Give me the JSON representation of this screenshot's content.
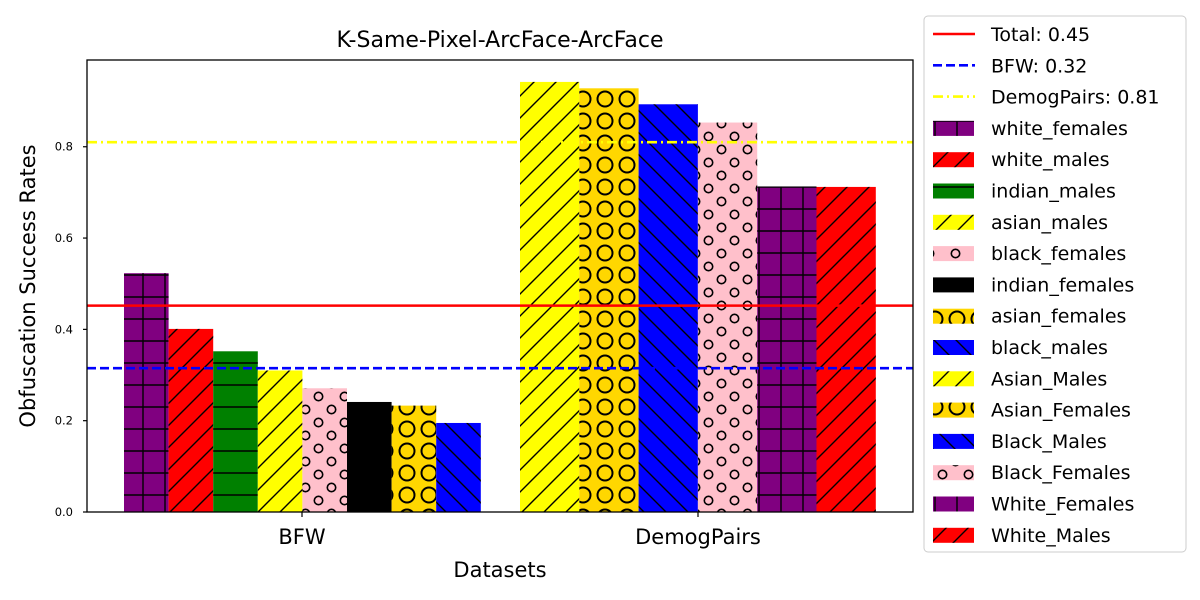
{
  "chart_data": {
    "type": "bar",
    "title": "K-Same-Pixel-ArcFace-ArcFace",
    "xlabel": "Datasets",
    "ylabel": "Obfuscation Success Rates",
    "ylim": [
      0,
      0.94
    ],
    "yticks": [
      "0.0",
      "0.2",
      "0.4",
      "0.6",
      "0.8"
    ],
    "grid": false,
    "legend_position": "outside-right",
    "groups": [
      {
        "category": "BFW",
        "bars": [
          {
            "name": "white_females",
            "value": 0.523,
            "color": "#800080",
            "hatch": "grid"
          },
          {
            "name": "white_males",
            "value": 0.401,
            "color": "#ff0000",
            "hatch": "slash"
          },
          {
            "name": "indian_males",
            "value": 0.352,
            "color": "#008000",
            "hatch": "hline"
          },
          {
            "name": "asian_males",
            "value": 0.31,
            "color": "#ffff00",
            "hatch": "slash"
          },
          {
            "name": "black_females",
            "value": 0.271,
            "color": "#ffc0cb",
            "hatch": "smallcircle"
          },
          {
            "name": "indian_females",
            "value": 0.241,
            "color": "#000000",
            "hatch": "none"
          },
          {
            "name": "asian_females",
            "value": 0.233,
            "color": "#ffd700",
            "hatch": "bigcircle"
          },
          {
            "name": "black_males",
            "value": 0.195,
            "color": "#0000ff",
            "hatch": "backslash"
          }
        ]
      },
      {
        "category": "DemogPairs",
        "bars": [
          {
            "name": "Asian_Males",
            "value": 0.942,
            "color": "#ffff00",
            "hatch": "slash"
          },
          {
            "name": "Asian_Females",
            "value": 0.928,
            "color": "#ffd700",
            "hatch": "bigcircle"
          },
          {
            "name": "Black_Males",
            "value": 0.893,
            "color": "#0000ff",
            "hatch": "backslash"
          },
          {
            "name": "Black_Females",
            "value": 0.853,
            "color": "#ffc0cb",
            "hatch": "smallcircle"
          },
          {
            "name": "White_Females",
            "value": 0.713,
            "color": "#800080",
            "hatch": "grid"
          },
          {
            "name": "White_Males",
            "value": 0.712,
            "color": "#ff0000",
            "hatch": "slash"
          }
        ]
      }
    ],
    "reference_lines": [
      {
        "label": "Total: 0.45",
        "value": 0.452,
        "color": "#ff0000",
        "style": "solid"
      },
      {
        "label": "BFW: 0.32",
        "value": 0.315,
        "color": "#0000ff",
        "style": "dashed"
      },
      {
        "label": "DemogPairs: 0.81",
        "value": 0.81,
        "color": "#ffff00",
        "style": "dashdot"
      }
    ],
    "legend": [
      {
        "label": "Total: 0.45",
        "kind": "line",
        "color": "#ff0000",
        "style": "solid"
      },
      {
        "label": "BFW: 0.32",
        "kind": "line",
        "color": "#0000ff",
        "style": "dashed"
      },
      {
        "label": "DemogPairs: 0.81",
        "kind": "line",
        "color": "#ffff00",
        "style": "dashdot"
      },
      {
        "label": "white_females",
        "kind": "patch",
        "color": "#800080",
        "hatch": "grid"
      },
      {
        "label": "white_males",
        "kind": "patch",
        "color": "#ff0000",
        "hatch": "slash"
      },
      {
        "label": "indian_males",
        "kind": "patch",
        "color": "#008000",
        "hatch": "hline"
      },
      {
        "label": "asian_males",
        "kind": "patch",
        "color": "#ffff00",
        "hatch": "slash"
      },
      {
        "label": "black_females",
        "kind": "patch",
        "color": "#ffc0cb",
        "hatch": "smallcircle"
      },
      {
        "label": "indian_females",
        "kind": "patch",
        "color": "#000000",
        "hatch": "none"
      },
      {
        "label": "asian_females",
        "kind": "patch",
        "color": "#ffd700",
        "hatch": "bigcircle"
      },
      {
        "label": "black_males",
        "kind": "patch",
        "color": "#0000ff",
        "hatch": "backslash"
      },
      {
        "label": "Asian_Males",
        "kind": "patch",
        "color": "#ffff00",
        "hatch": "slash"
      },
      {
        "label": "Asian_Females",
        "kind": "patch",
        "color": "#ffd700",
        "hatch": "bigcircle"
      },
      {
        "label": "Black_Males",
        "kind": "patch",
        "color": "#0000ff",
        "hatch": "backslash"
      },
      {
        "label": "Black_Females",
        "kind": "patch",
        "color": "#ffc0cb",
        "hatch": "smallcircle"
      },
      {
        "label": "White_Females",
        "kind": "patch",
        "color": "#800080",
        "hatch": "grid"
      },
      {
        "label": "White_Males",
        "kind": "patch",
        "color": "#ff0000",
        "hatch": "slash"
      }
    ]
  }
}
